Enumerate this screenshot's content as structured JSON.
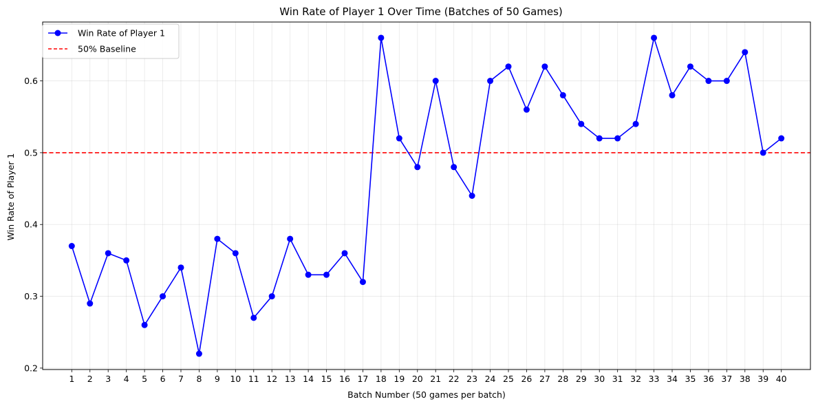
{
  "chart_data": {
    "type": "line",
    "title": "Win Rate of Player 1 Over Time (Batches of 50 Games)",
    "xlabel": "Batch Number (50 games per batch)",
    "ylabel": "Win Rate of Player 1",
    "x": [
      1,
      2,
      3,
      4,
      5,
      6,
      7,
      8,
      9,
      10,
      11,
      12,
      13,
      14,
      15,
      16,
      17,
      18,
      19,
      20,
      21,
      22,
      23,
      24,
      25,
      26,
      27,
      28,
      29,
      30,
      31,
      32,
      33,
      34,
      35,
      36,
      37,
      38,
      39,
      40
    ],
    "series": [
      {
        "name": "Win Rate of Player 1",
        "color": "#0000ff",
        "marker": "circle",
        "values": [
          0.37,
          0.29,
          0.36,
          0.35,
          0.26,
          0.3,
          0.34,
          0.22,
          0.38,
          0.36,
          0.27,
          0.3,
          0.38,
          0.33,
          0.33,
          0.36,
          0.32,
          0.66,
          0.52,
          0.48,
          0.6,
          0.48,
          0.44,
          0.6,
          0.62,
          0.56,
          0.62,
          0.58,
          0.54,
          0.52,
          0.52,
          0.54,
          0.66,
          0.58,
          0.62,
          0.6,
          0.6,
          0.64,
          0.5,
          0.52
        ]
      }
    ],
    "baseline": {
      "name": "50% Baseline",
      "value": 0.5,
      "color": "#ff0000",
      "style": "dashed"
    },
    "xlim": [
      -0.6,
      41.6
    ],
    "ylim": [
      0.198,
      0.682
    ],
    "yticks": [
      0.2,
      0.3,
      0.4,
      0.5,
      0.6
    ],
    "ytick_labels": [
      "0.2",
      "0.3",
      "0.4",
      "0.5",
      "0.6"
    ],
    "grid": true,
    "legend_position": "top-left"
  }
}
